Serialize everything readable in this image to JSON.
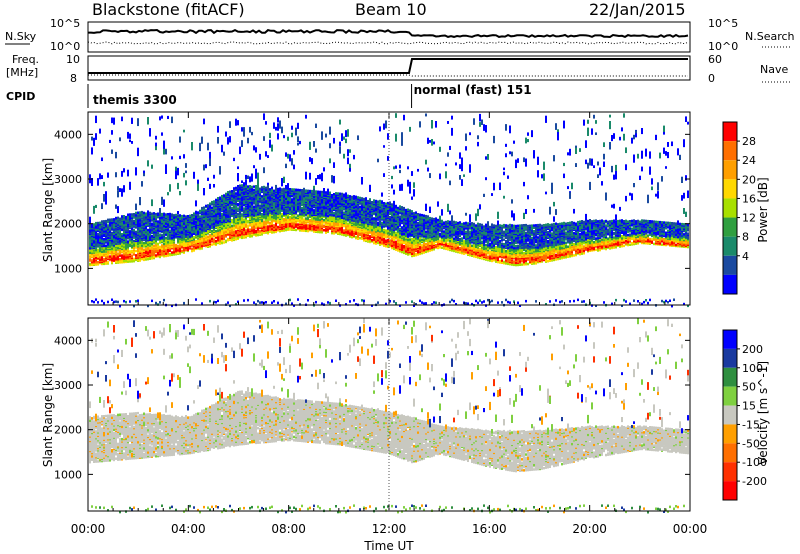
{
  "header": {
    "title": "Blackstone (fitACF)",
    "beam": "Beam 10",
    "date": "22/Jan/2015"
  },
  "noise_panel": {
    "left_label": "N.Sky",
    "left_ticks": [
      "10^5",
      "10^0"
    ],
    "right_label": "N.Search",
    "right_ticks": [
      "10^5",
      "10^0"
    ]
  },
  "freq_panel": {
    "left_label_line1": "Freq.",
    "left_label_line2": "[MHz]",
    "left_ticks": [
      "10",
      "8"
    ],
    "right_label": "Nave",
    "right_ticks": [
      "60",
      "0"
    ]
  },
  "cpid_panel": {
    "label": "CPID",
    "modes": [
      {
        "name": "themis 3300",
        "start_hour": 0
      },
      {
        "name": "normal (fast) 151",
        "start_hour": 12.9
      }
    ]
  },
  "x_axis": {
    "label": "Time UT",
    "ticks": [
      "00:00",
      "04:00",
      "08:00",
      "12:00",
      "16:00",
      "20:00",
      "00:00"
    ],
    "tick_hours": [
      0,
      4,
      8,
      12,
      16,
      20,
      24
    ]
  },
  "power_colorbar": {
    "label": "Power [dB]",
    "tick_labels": [
      "28",
      "24",
      "20",
      "16",
      "12",
      "8",
      "4"
    ],
    "colors": [
      "#ff0000",
      "#ff6f00",
      "#ff9f00",
      "#ffd800",
      "#a8e000",
      "#2f9f40",
      "#1a8a6a",
      "#1a4aa0",
      "#0000ff"
    ]
  },
  "velocity_colorbar": {
    "label": "Velocity [m s^-1]",
    "tick_labels": [
      "200",
      "100",
      "50",
      "15",
      "-15",
      "-50",
      "-100",
      "-200"
    ],
    "colors": [
      "#0000ff",
      "#1a3aa0",
      "#2f8f40",
      "#7fd040",
      "#c8c8c0",
      "#ff9f00",
      "#ff6f00",
      "#ff3000",
      "#ff0000"
    ]
  },
  "chart_data": [
    {
      "type": "heatmap",
      "title": "Power",
      "xlabel": "Time UT",
      "ylabel": "Slant Range [km]",
      "xlim": [
        0,
        24
      ],
      "ylim": [
        180,
        4500
      ],
      "yticks": [
        1000,
        2000,
        3000,
        4000
      ],
      "clim": [
        0,
        32
      ],
      "series": [
        {
          "name": "main band lower edge (km)",
          "x": [
            0,
            2,
            4,
            6,
            8,
            10,
            12,
            12.9,
            14,
            16,
            17,
            18,
            20,
            22,
            24
          ],
          "values": [
            1100,
            1200,
            1400,
            1700,
            1900,
            1800,
            1500,
            1300,
            1500,
            1200,
            1100,
            1150,
            1400,
            1600,
            1500
          ]
        },
        {
          "name": "main band upper edge (km)",
          "x": [
            0,
            2,
            4,
            6,
            8,
            10,
            12,
            12.9,
            14,
            16,
            17,
            18,
            20,
            22,
            24
          ],
          "values": [
            2000,
            2300,
            2200,
            2900,
            2800,
            2700,
            2500,
            2300,
            2100,
            2000,
            2000,
            2000,
            2100,
            2100,
            2000
          ]
        }
      ]
    },
    {
      "type": "heatmap",
      "title": "Velocity",
      "xlabel": "Time UT",
      "ylabel": "Slant Range [km]",
      "xlim": [
        0,
        24
      ],
      "ylim": [
        180,
        4500
      ],
      "yticks": [
        1000,
        2000,
        3000,
        4000
      ],
      "clim": [
        -250,
        250
      ],
      "series": [
        {
          "name": "ground scatter band lower edge (km)",
          "x": [
            0,
            2,
            4,
            6,
            8,
            10,
            12,
            12.9,
            14,
            16,
            17,
            18,
            20,
            22,
            24
          ],
          "values": [
            1300,
            1400,
            1500,
            1700,
            1800,
            1700,
            1500,
            1300,
            1500,
            1200,
            1100,
            1150,
            1400,
            1600,
            1500
          ]
        },
        {
          "name": "ground scatter band upper edge (km)",
          "x": [
            0,
            2,
            4,
            6,
            8,
            10,
            12,
            12.9,
            14,
            16,
            17,
            18,
            20,
            22,
            24
          ],
          "values": [
            2300,
            2400,
            2300,
            2900,
            2700,
            2600,
            2400,
            2300,
            2100,
            2000,
            2000,
            2000,
            2100,
            2100,
            2000
          ]
        }
      ]
    }
  ]
}
